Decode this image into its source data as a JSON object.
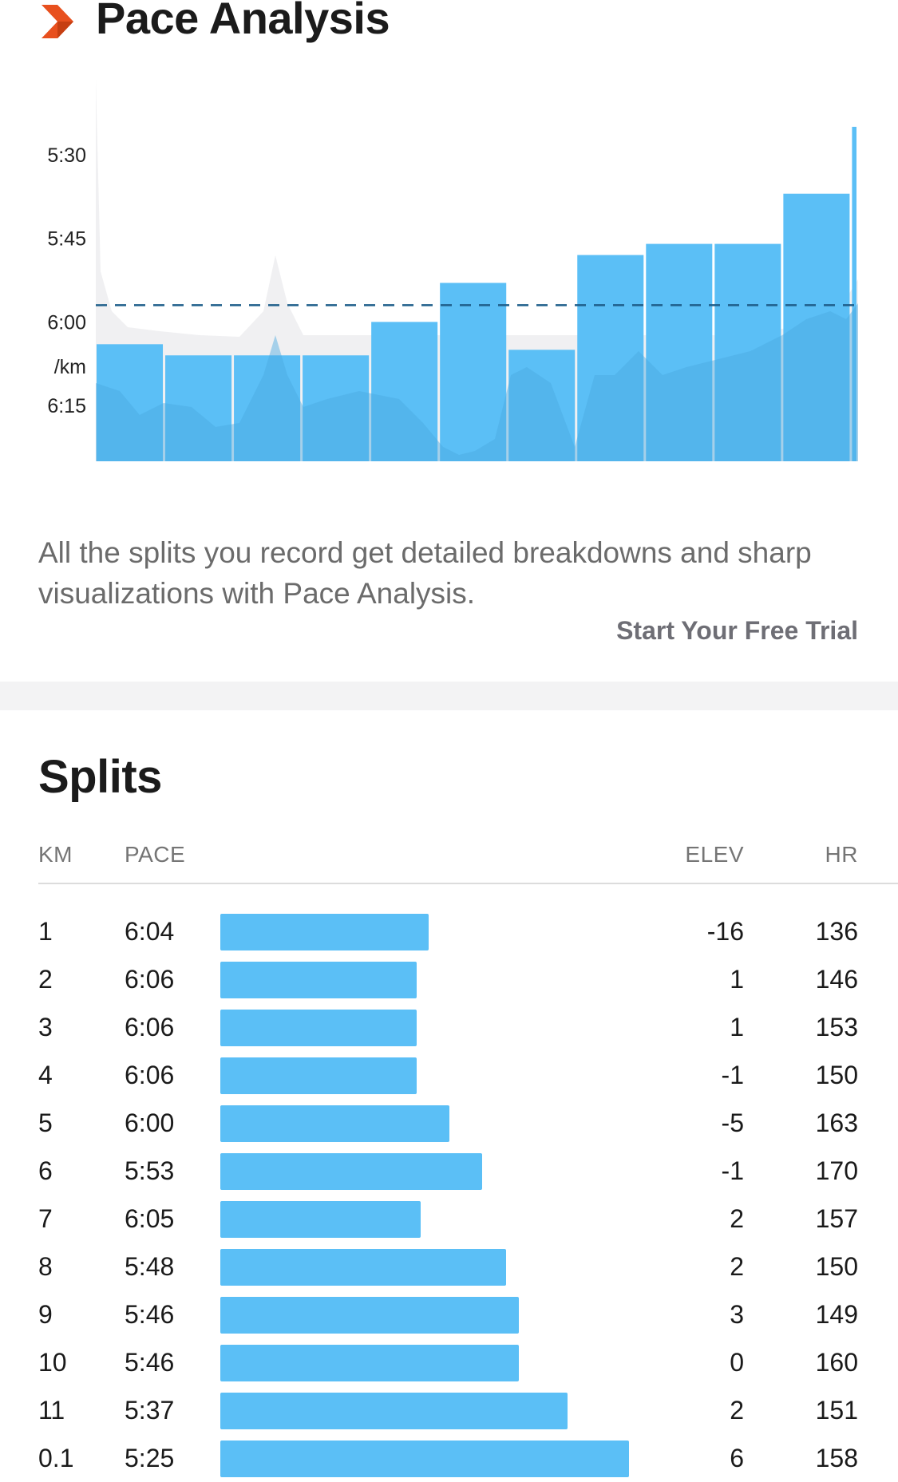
{
  "pace_analysis": {
    "title": "Pace Analysis",
    "logo_icon": "chevron-right-icon",
    "accent_color": "#e8501e",
    "description": "All the splits you record get detailed breakdowns and sharp visualizations with Pace Analysis.",
    "cta_label": "Start Your Free Trial"
  },
  "chart_data": {
    "type": "bar",
    "categories": [
      "1",
      "2",
      "3",
      "4",
      "5",
      "6",
      "7",
      "8",
      "9",
      "10",
      "11",
      "0.1"
    ],
    "widths_km": [
      1,
      1,
      1,
      1,
      1,
      1,
      1,
      1,
      1,
      1,
      1,
      0.1
    ],
    "values_sec_per_km": [
      364,
      366,
      366,
      366,
      360,
      353,
      365,
      348,
      346,
      346,
      337,
      325
    ],
    "average_pace_sec_per_km": 357,
    "y_tick_labels": [
      "5:30",
      "5:45",
      "6:00",
      "6:15"
    ],
    "y_tick_values_sec": [
      330,
      345,
      360,
      375
    ],
    "ylabel": "/km",
    "ylim_sec_per_km": [
      385,
      318
    ],
    "bar_color": "#5bbff6",
    "avg_line_color": "#1f5f8b",
    "grid": false,
    "legend": "none"
  },
  "splits": {
    "title": "Splits",
    "headers": {
      "km": "KM",
      "pace": "PACE",
      "elev": "ELEV",
      "hr": "HR"
    },
    "bar_color": "#5bbff6",
    "rows": [
      {
        "km": "1",
        "pace": "6:04",
        "elev": "-16",
        "hr": "136",
        "bar_fraction": 0.51
      },
      {
        "km": "2",
        "pace": "6:06",
        "elev": "1",
        "hr": "146",
        "bar_fraction": 0.48
      },
      {
        "km": "3",
        "pace": "6:06",
        "elev": "1",
        "hr": "153",
        "bar_fraction": 0.48
      },
      {
        "km": "4",
        "pace": "6:06",
        "elev": "-1",
        "hr": "150",
        "bar_fraction": 0.48
      },
      {
        "km": "5",
        "pace": "6:00",
        "elev": "-5",
        "hr": "163",
        "bar_fraction": 0.56
      },
      {
        "km": "6",
        "pace": "5:53",
        "elev": "-1",
        "hr": "170",
        "bar_fraction": 0.64
      },
      {
        "km": "7",
        "pace": "6:05",
        "elev": "2",
        "hr": "157",
        "bar_fraction": 0.49
      },
      {
        "km": "8",
        "pace": "5:48",
        "elev": "2",
        "hr": "150",
        "bar_fraction": 0.7
      },
      {
        "km": "9",
        "pace": "5:46",
        "elev": "3",
        "hr": "149",
        "bar_fraction": 0.73
      },
      {
        "km": "10",
        "pace": "5:46",
        "elev": "0",
        "hr": "160",
        "bar_fraction": 0.73
      },
      {
        "km": "11",
        "pace": "5:37",
        "elev": "2",
        "hr": "151",
        "bar_fraction": 0.85
      },
      {
        "km": "0.1",
        "pace": "5:25",
        "elev": "6",
        "hr": "158",
        "bar_fraction": 1.0
      }
    ]
  }
}
